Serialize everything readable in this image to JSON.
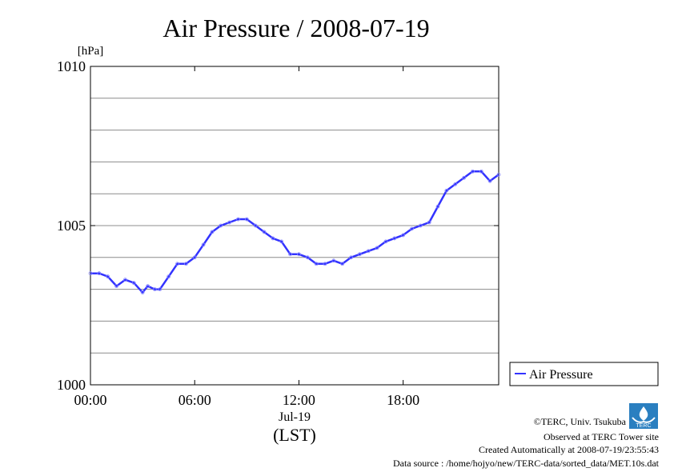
{
  "chart_data": {
    "type": "line",
    "title": "Air Pressure / 2008-07-19",
    "ylabel_unit": "[hPa]",
    "xlabel": "(LST)",
    "date_label": "Jul-19",
    "xlim_hours": [
      0,
      23.5
    ],
    "ylim": [
      1000,
      1010
    ],
    "y_ticks": [
      {
        "value": 1000,
        "label": "1000"
      },
      {
        "value": 1005,
        "label": "1005"
      },
      {
        "value": 1010,
        "label": "1010"
      }
    ],
    "y_gridlines": [
      1001,
      1002,
      1003,
      1004,
      1005,
      1006,
      1007,
      1008,
      1009
    ],
    "x_ticks": [
      {
        "value": 0,
        "label": "00:00"
      },
      {
        "value": 6,
        "label": "06:00"
      },
      {
        "value": 12,
        "label": "12:00"
      },
      {
        "value": 18,
        "label": "18:00"
      }
    ],
    "grid": true,
    "legend_position": "right",
    "series": [
      {
        "name": "Air Pressure",
        "color": "#3333ff",
        "x": [
          0,
          0.5,
          1.0,
          1.5,
          2.0,
          2.5,
          3.0,
          3.3,
          3.7,
          4.0,
          4.5,
          5.0,
          5.5,
          6.0,
          6.5,
          7.0,
          7.5,
          8.0,
          8.5,
          9.0,
          9.5,
          10.0,
          10.5,
          11.0,
          11.5,
          12.0,
          12.5,
          13.0,
          13.5,
          14.0,
          14.5,
          15.0,
          15.5,
          16.0,
          16.5,
          17.0,
          17.5,
          18.0,
          18.5,
          19.0,
          19.5,
          20.0,
          20.5,
          21.0,
          21.5,
          22.0,
          22.5,
          23.0,
          23.5
        ],
        "y": [
          1003.5,
          1003.5,
          1003.4,
          1003.1,
          1003.3,
          1003.2,
          1002.9,
          1003.1,
          1003.0,
          1003.0,
          1003.4,
          1003.8,
          1003.8,
          1004.0,
          1004.4,
          1004.8,
          1005.0,
          1005.1,
          1005.2,
          1005.2,
          1005.0,
          1004.8,
          1004.6,
          1004.5,
          1004.1,
          1004.1,
          1004.0,
          1003.8,
          1003.8,
          1003.9,
          1003.8,
          1004.0,
          1004.1,
          1004.2,
          1004.3,
          1004.5,
          1004.6,
          1004.7,
          1004.9,
          1005.0,
          1005.1,
          1005.6,
          1006.1,
          1006.3,
          1006.5,
          1006.7,
          1006.7,
          1006.4,
          1006.6
        ]
      }
    ]
  },
  "credits": {
    "copyright": "©TERC, Univ. Tsukuba",
    "site": "Observed at TERC Tower site",
    "created": "Created Automatically at 2008-07-19/23:55:43",
    "source": "Data source : /home/hojyo/new/TERC-data/sorted_data/MET.10s.dat",
    "logo_text": "TERC"
  }
}
